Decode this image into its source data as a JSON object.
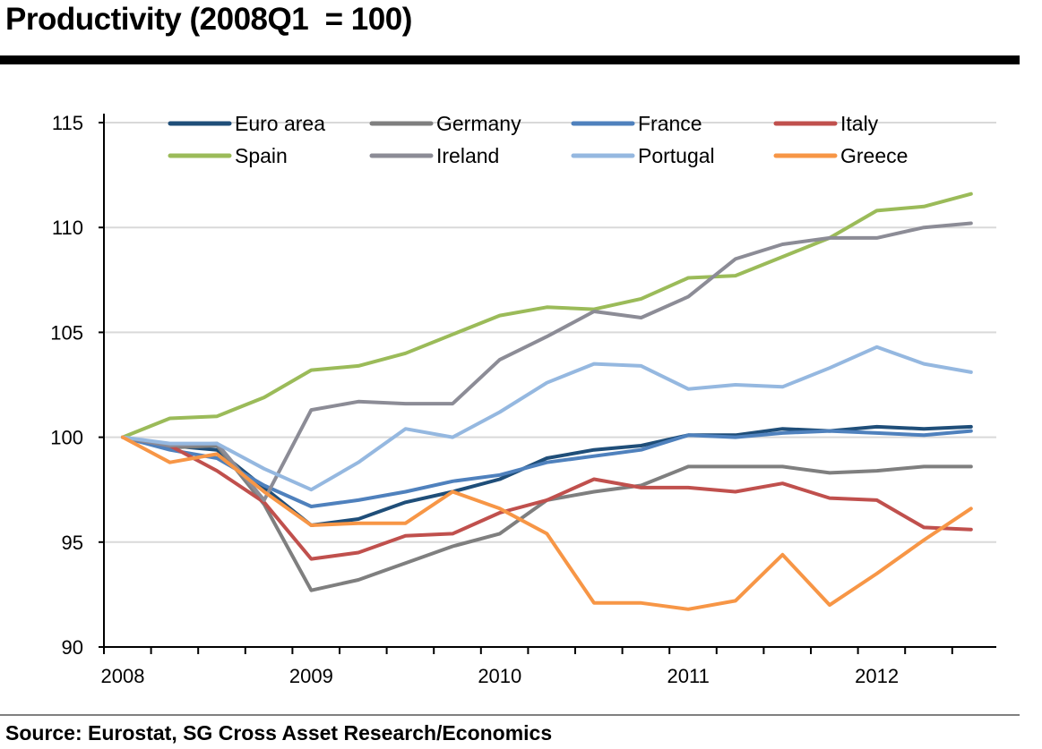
{
  "title": "Productivity (2008Q1  = 100)",
  "source": "Source: Eurostat, SG Cross Asset Research/Economics",
  "colors": {
    "grid": "#d9d9d9",
    "axis": "#000000"
  },
  "chart_data": {
    "type": "line",
    "title": "Productivity (2008Q1  = 100)",
    "xlabel": "",
    "ylabel": "",
    "ylim": [
      90,
      115
    ],
    "yticks": [
      90,
      95,
      100,
      105,
      110,
      115
    ],
    "grid": true,
    "legend_position": "top",
    "x": [
      "2008Q1",
      "2008Q2",
      "2008Q3",
      "2008Q4",
      "2009Q1",
      "2009Q2",
      "2009Q3",
      "2009Q4",
      "2010Q1",
      "2010Q2",
      "2010Q3",
      "2010Q4",
      "2011Q1",
      "2011Q2",
      "2011Q3",
      "2011Q4",
      "2012Q1",
      "2012Q2",
      "2012Q3"
    ],
    "year_labels": [
      "2008",
      "2009",
      "2010",
      "2011",
      "2012"
    ],
    "series": [
      {
        "name": "Euro area",
        "color": "#1f4e79",
        "values": [
          100,
          99.6,
          99.4,
          97.6,
          95.8,
          96.1,
          96.9,
          97.4,
          98.0,
          99.0,
          99.4,
          99.6,
          100.1,
          100.1,
          100.4,
          100.3,
          100.5,
          100.4,
          100.5
        ]
      },
      {
        "name": "Germany",
        "color": "#7f7f7f",
        "values": [
          100,
          99.5,
          99.6,
          96.8,
          92.7,
          93.2,
          94.0,
          94.8,
          95.4,
          97.0,
          97.4,
          97.7,
          98.6,
          98.6,
          98.6,
          98.3,
          98.4,
          98.6,
          98.6
        ]
      },
      {
        "name": "France",
        "color": "#4f81bd",
        "values": [
          100,
          99.4,
          99.0,
          97.7,
          96.7,
          97.0,
          97.4,
          97.9,
          98.2,
          98.8,
          99.1,
          99.4,
          100.1,
          100.0,
          100.2,
          100.3,
          100.2,
          100.1,
          100.3
        ]
      },
      {
        "name": "Italy",
        "color": "#c0504d",
        "values": [
          100,
          99.6,
          98.4,
          96.9,
          94.2,
          94.5,
          95.3,
          95.4,
          96.4,
          97.0,
          98.0,
          97.6,
          97.6,
          97.4,
          97.8,
          97.1,
          97.0,
          95.7,
          95.6
        ]
      },
      {
        "name": "Spain",
        "color": "#9bbb59",
        "values": [
          100,
          100.9,
          101.0,
          101.9,
          103.2,
          103.4,
          104.0,
          104.9,
          105.8,
          106.2,
          106.1,
          106.6,
          107.6,
          107.7,
          108.6,
          109.5,
          110.8,
          111.0,
          111.6
        ]
      },
      {
        "name": "Ireland",
        "color": "#8c8c96",
        "values": [
          100,
          99.6,
          99.7,
          97.0,
          101.3,
          101.7,
          101.6,
          101.6,
          103.7,
          104.8,
          106.0,
          105.7,
          106.7,
          108.5,
          109.2,
          109.5,
          109.5,
          110.0,
          110.2
        ]
      },
      {
        "name": "Portugal",
        "color": "#95b8e0",
        "values": [
          100,
          99.7,
          99.7,
          98.5,
          97.5,
          98.8,
          100.4,
          100.0,
          101.2,
          102.6,
          103.5,
          103.4,
          102.3,
          102.5,
          102.4,
          103.3,
          104.3,
          103.5,
          103.1
        ]
      },
      {
        "name": "Greece",
        "color": "#f79646",
        "values": [
          100,
          98.8,
          99.2,
          97.4,
          95.8,
          95.9,
          95.9,
          97.4,
          96.6,
          95.4,
          92.1,
          92.1,
          91.8,
          92.2,
          94.4,
          92.0,
          93.5,
          95.1,
          96.6
        ]
      }
    ]
  }
}
